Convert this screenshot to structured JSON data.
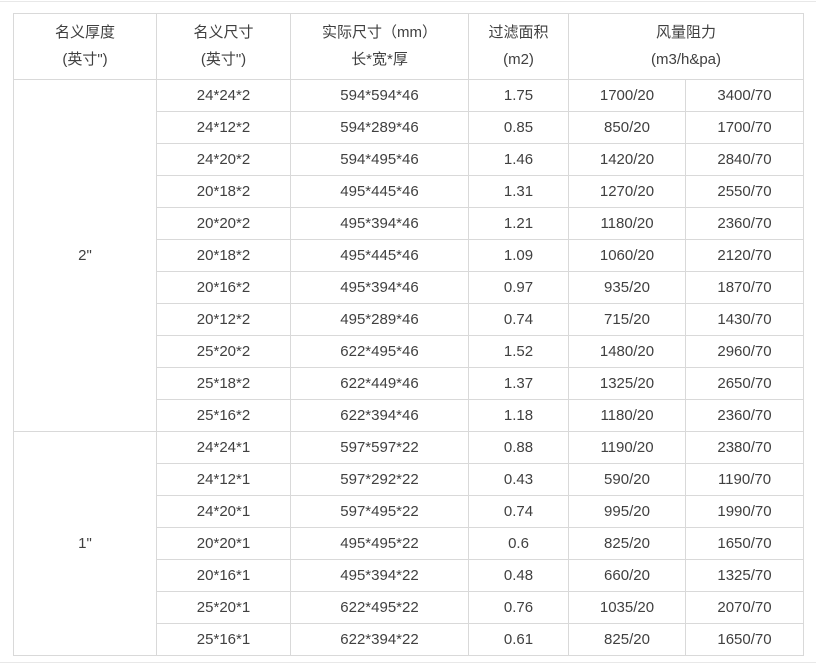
{
  "page": {
    "background_color": "#ffffff",
    "border_color": "#d9d9d9",
    "separator_color": "#e8e8e8",
    "text_color": "#404040"
  },
  "table": {
    "headers": {
      "nominal_thickness": {
        "line1": "名义厚度",
        "line2": "(英寸\")"
      },
      "nominal_size": {
        "line1": "名义尺寸",
        "line2": "(英寸\")"
      },
      "actual_size": {
        "line1": "实际尺寸（mm）",
        "line2": "长*宽*厚"
      },
      "filter_area": {
        "line1": "过滤面积",
        "line2": "(m2)"
      },
      "airflow_resistance": {
        "line1": "风量阻力",
        "line2": "(m3/h&pa)"
      }
    },
    "cell_names": [
      "nominal-size-cell",
      "actual-size-cell",
      "filter-area-cell",
      "airflow-20pa-cell",
      "airflow-70pa-cell"
    ],
    "sections": [
      {
        "thickness": "2\"",
        "rows": [
          [
            "24*24*2",
            "594*594*46",
            "1.75",
            "1700/20",
            "3400/70"
          ],
          [
            "24*12*2",
            "594*289*46",
            "0.85",
            "850/20",
            "1700/70"
          ],
          [
            "24*20*2",
            "594*495*46",
            "1.46",
            "1420/20",
            "2840/70"
          ],
          [
            "20*18*2",
            "495*445*46",
            "1.31",
            "1270/20",
            "2550/70"
          ],
          [
            "20*20*2",
            "495*394*46",
            "1.21",
            "1180/20",
            "2360/70"
          ],
          [
            "20*18*2",
            "495*445*46",
            "1.09",
            "1060/20",
            "2120/70"
          ],
          [
            "20*16*2",
            "495*394*46",
            "0.97",
            "935/20",
            "1870/70"
          ],
          [
            "20*12*2",
            "495*289*46",
            "0.74",
            "715/20",
            "1430/70"
          ],
          [
            "25*20*2",
            "622*495*46",
            "1.52",
            "1480/20",
            "2960/70"
          ],
          [
            "25*18*2",
            "622*449*46",
            "1.37",
            "1325/20",
            "2650/70"
          ],
          [
            "25*16*2",
            "622*394*46",
            "1.18",
            "1180/20",
            "2360/70"
          ]
        ]
      },
      {
        "thickness": "1\"",
        "rows": [
          [
            "24*24*1",
            "597*597*22",
            "0.88",
            "1190/20",
            "2380/70"
          ],
          [
            "24*12*1",
            "597*292*22",
            "0.43",
            "590/20",
            "1190/70"
          ],
          [
            "24*20*1",
            "597*495*22",
            "0.74",
            "995/20",
            "1990/70"
          ],
          [
            "20*20*1",
            "495*495*22",
            "0.6",
            "825/20",
            "1650/70"
          ],
          [
            "20*16*1",
            "495*394*22",
            "0.48",
            "660/20",
            "1325/70"
          ],
          [
            "25*20*1",
            "622*495*22",
            "0.76",
            "1035/20",
            "2070/70"
          ],
          [
            "25*16*1",
            "622*394*22",
            "0.61",
            "825/20",
            "1650/70"
          ]
        ]
      }
    ]
  }
}
